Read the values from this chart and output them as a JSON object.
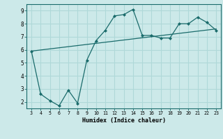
{
  "x": [
    3,
    4,
    5,
    6,
    7,
    8,
    9,
    10,
    11,
    12,
    13,
    14,
    15,
    16,
    17,
    18,
    19,
    20,
    21,
    22,
    23
  ],
  "y": [
    5.9,
    2.6,
    2.1,
    1.7,
    2.9,
    1.9,
    5.2,
    6.7,
    7.5,
    8.6,
    8.7,
    9.1,
    7.1,
    7.1,
    6.9,
    6.9,
    8.0,
    8.0,
    8.5,
    8.1,
    7.5
  ],
  "trend_x": [
    3,
    23
  ],
  "trend_y": [
    5.9,
    7.6
  ],
  "line_color": "#1a6b6b",
  "bg_color": "#cce9e9",
  "grid_color": "#afd8d8",
  "xlabel": "Humidex (Indice chaleur)",
  "ylim": [
    1.5,
    9.5
  ],
  "xlim": [
    2.5,
    23.5
  ],
  "yticks": [
    2,
    3,
    4,
    5,
    6,
    7,
    8,
    9
  ],
  "xticks": [
    3,
    4,
    5,
    6,
    7,
    8,
    9,
    10,
    11,
    12,
    13,
    14,
    15,
    16,
    17,
    18,
    19,
    20,
    21,
    22,
    23
  ]
}
